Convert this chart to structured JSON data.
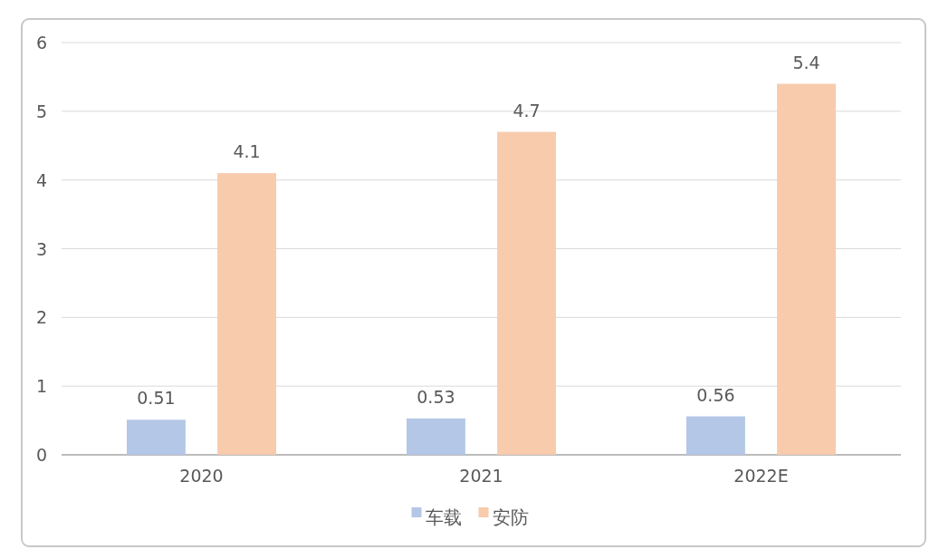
{
  "chart_data": {
    "type": "bar",
    "categories": [
      "2020",
      "2021",
      "2022E"
    ],
    "series": [
      {
        "name": "车载",
        "color": "#b4c7e7",
        "values": [
          0.51,
          0.53,
          0.56
        ]
      },
      {
        "name": "安防",
        "color": "#f8cbad",
        "values": [
          4.1,
          4.7,
          5.4
        ]
      }
    ],
    "ylim": [
      0,
      6
    ],
    "yticks": [
      0,
      1,
      2,
      3,
      4,
      5,
      6
    ],
    "grid": "y",
    "legend": "bottom",
    "data_labels": true
  }
}
